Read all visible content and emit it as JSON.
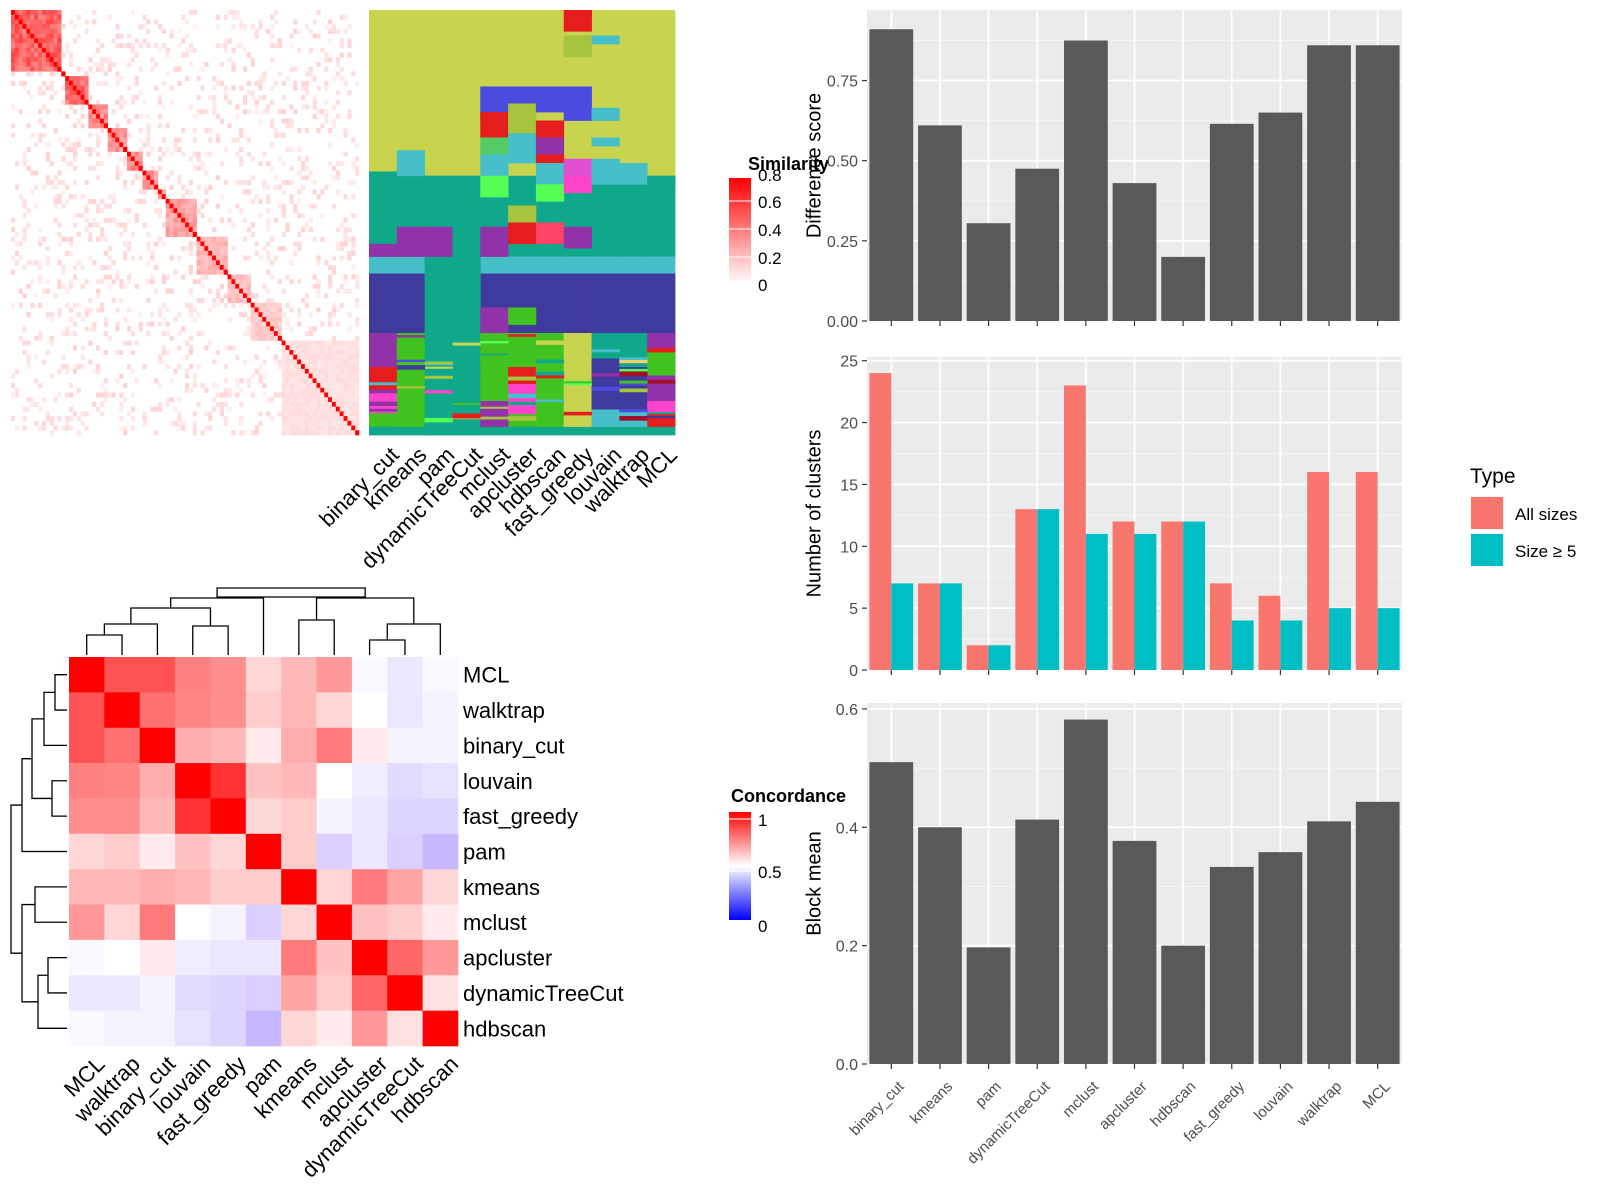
{
  "chart_data": [
    {
      "type": "heatmap",
      "panel": "similarity-heatmap",
      "legend_title": "Similarity",
      "legend_ticks": [
        "0",
        "0.2",
        "0.4",
        "0.6",
        "0.8"
      ],
      "legend_colors": [
        "#ffffff",
        "#ff0000"
      ],
      "clustering_methods": [
        "binary_cut",
        "kmeans",
        "pam",
        "dynamicTreeCut",
        "mclust",
        "apcluster",
        "hdbscan",
        "fast_greedy",
        "louvain",
        "walktrap",
        "MCL"
      ]
    },
    {
      "type": "heatmap",
      "panel": "concordance-heatmap",
      "legend_title": "Concordance",
      "legend_ticks": [
        "0",
        "0.5",
        "1"
      ],
      "legend_colors": [
        "#0000ff",
        "#ffffff",
        "#ff0000"
      ],
      "rows": [
        "MCL",
        "walktrap",
        "binary_cut",
        "louvain",
        "fast_greedy",
        "pam",
        "kmeans",
        "mclust",
        "apcluster",
        "dynamicTreeCut",
        "hdbscan"
      ],
      "columns": [
        "MCL",
        "walktrap",
        "binary_cut",
        "louvain",
        "fast_greedy",
        "pam",
        "kmeans",
        "mclust",
        "apcluster",
        "dynamicTreeCut",
        "hdbscan"
      ],
      "values": [
        [
          1.0,
          0.84,
          0.84,
          0.75,
          0.72,
          0.58,
          0.64,
          0.7,
          0.48,
          0.42,
          0.48
        ],
        [
          0.84,
          1.0,
          0.78,
          0.74,
          0.72,
          0.6,
          0.64,
          0.58,
          0.5,
          0.42,
          0.46
        ],
        [
          0.84,
          0.78,
          1.0,
          0.66,
          0.64,
          0.54,
          0.66,
          0.76,
          0.54,
          0.46,
          0.46
        ],
        [
          0.75,
          0.74,
          0.66,
          1.0,
          0.9,
          0.62,
          0.64,
          0.5,
          0.44,
          0.38,
          0.4
        ],
        [
          0.72,
          0.72,
          0.64,
          0.9,
          1.0,
          0.58,
          0.6,
          0.46,
          0.42,
          0.36,
          0.36
        ],
        [
          0.58,
          0.6,
          0.54,
          0.62,
          0.58,
          1.0,
          0.6,
          0.34,
          0.42,
          0.34,
          0.26
        ],
        [
          0.64,
          0.64,
          0.66,
          0.64,
          0.6,
          0.6,
          1.0,
          0.58,
          0.76,
          0.68,
          0.58
        ],
        [
          0.7,
          0.58,
          0.76,
          0.5,
          0.46,
          0.34,
          0.58,
          1.0,
          0.62,
          0.6,
          0.54
        ],
        [
          0.48,
          0.5,
          0.54,
          0.44,
          0.42,
          0.42,
          0.76,
          0.62,
          1.0,
          0.8,
          0.7
        ],
        [
          0.42,
          0.42,
          0.46,
          0.38,
          0.36,
          0.34,
          0.68,
          0.6,
          0.8,
          1.0,
          0.56
        ],
        [
          0.48,
          0.46,
          0.46,
          0.4,
          0.36,
          0.26,
          0.58,
          0.54,
          0.7,
          0.56,
          1.0
        ]
      ]
    },
    {
      "type": "bar",
      "panel": "difference-score",
      "categories": [
        "binary_cut",
        "kmeans",
        "pam",
        "dynamicTreeCut",
        "mclust",
        "apcluster",
        "hdbscan",
        "fast_greedy",
        "louvain",
        "walktrap",
        "MCL"
      ],
      "values": [
        0.91,
        0.61,
        0.305,
        0.475,
        0.875,
        0.43,
        0.2,
        0.615,
        0.65,
        0.86,
        0.86
      ],
      "ylabel": "Difference score",
      "ylim": [
        0,
        0.97
      ],
      "yticks": [
        "0.00",
        "0.25",
        "0.50",
        "0.75"
      ],
      "ytick_values": [
        0,
        0.25,
        0.5,
        0.75
      ],
      "bar_color": "#595959",
      "grid": true
    },
    {
      "type": "bar",
      "panel": "number-of-clusters",
      "categories": [
        "binary_cut",
        "kmeans",
        "pam",
        "dynamicTreeCut",
        "mclust",
        "apcluster",
        "hdbscan",
        "fast_greedy",
        "louvain",
        "walktrap",
        "MCL"
      ],
      "series": [
        {
          "name": "All sizes",
          "color": "#F8766D",
          "values": [
            24,
            7,
            2,
            13,
            23,
            12,
            12,
            7,
            6,
            16,
            16
          ]
        },
        {
          "name": "Size ≥ 5",
          "color": "#00BFC4",
          "values": [
            7,
            7,
            2,
            13,
            11,
            11,
            12,
            4,
            4,
            5,
            5
          ]
        }
      ],
      "ylabel": "Number of clusters",
      "ylim": [
        0,
        25.3
      ],
      "yticks": [
        "0",
        "5",
        "10",
        "15",
        "20",
        "25"
      ],
      "ytick_values": [
        0,
        5,
        10,
        15,
        20,
        25
      ],
      "legend_title": "Type",
      "legend_position": "right",
      "grid": true
    },
    {
      "type": "bar",
      "panel": "block-mean",
      "categories": [
        "binary_cut",
        "kmeans",
        "pam",
        "dynamicTreeCut",
        "mclust",
        "apcluster",
        "hdbscan",
        "fast_greedy",
        "louvain",
        "walktrap",
        "MCL"
      ],
      "values": [
        0.51,
        0.4,
        0.197,
        0.413,
        0.582,
        0.377,
        0.2,
        0.333,
        0.358,
        0.41,
        0.443
      ],
      "ylabel": "Block mean",
      "ylim": [
        0,
        0.61
      ],
      "yticks": [
        "0.0",
        "0.2",
        "0.4",
        "0.6"
      ],
      "ytick_values": [
        0,
        0.2,
        0.4,
        0.6
      ],
      "bar_color": "#595959",
      "grid": true
    }
  ]
}
